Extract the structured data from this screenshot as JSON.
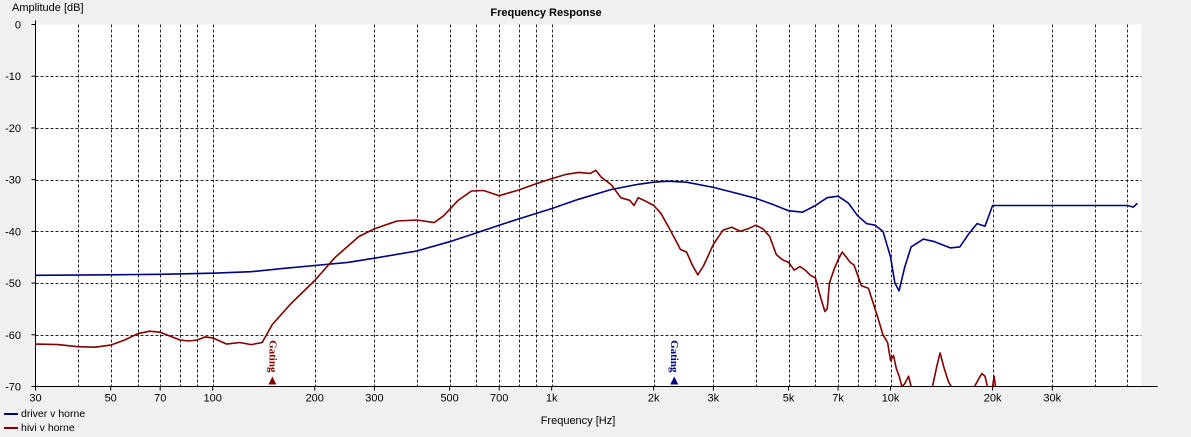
{
  "chart_data": {
    "type": "line",
    "title": "Frequency Response",
    "xlabel": "Frequency [Hz]",
    "ylabel": "Amplitude [dB]",
    "xscale": "log",
    "xlim": [
      30,
      55000
    ],
    "ylim": [
      -70,
      0
    ],
    "grid": true,
    "legend_position": "bottom-left",
    "x_ticks": [
      {
        "v": 30,
        "label": "30"
      },
      {
        "v": 50,
        "label": "50"
      },
      {
        "v": 70,
        "label": "70"
      },
      {
        "v": 100,
        "label": "100"
      },
      {
        "v": 200,
        "label": "200"
      },
      {
        "v": 300,
        "label": "300"
      },
      {
        "v": 500,
        "label": "500"
      },
      {
        "v": 700,
        "label": "700"
      },
      {
        "v": 1000,
        "label": "1k"
      },
      {
        "v": 2000,
        "label": "2k"
      },
      {
        "v": 3000,
        "label": "3k"
      },
      {
        "v": 5000,
        "label": "5k"
      },
      {
        "v": 7000,
        "label": "7k"
      },
      {
        "v": 10000,
        "label": "10k"
      },
      {
        "v": 20000,
        "label": "20k"
      },
      {
        "v": 30000,
        "label": "30k"
      }
    ],
    "y_ticks": [
      {
        "v": 0,
        "label": "0"
      },
      {
        "v": -10,
        "label": "-10"
      },
      {
        "v": -20,
        "label": "-20"
      },
      {
        "v": -30,
        "label": "-30"
      },
      {
        "v": -40,
        "label": "-40"
      },
      {
        "v": -50,
        "label": "-50"
      },
      {
        "v": -60,
        "label": "-60"
      },
      {
        "v": -70,
        "label": "-70"
      }
    ],
    "series": [
      {
        "name": "driver v horne",
        "color": "#00007f",
        "points": [
          [
            30,
            -48.5
          ],
          [
            50,
            -48.4
          ],
          [
            70,
            -48.3
          ],
          [
            100,
            -48.1
          ],
          [
            130,
            -47.8
          ],
          [
            160,
            -47.2
          ],
          [
            200,
            -46.6
          ],
          [
            250,
            -46.0
          ],
          [
            300,
            -45.2
          ],
          [
            400,
            -43.8
          ],
          [
            500,
            -42.0
          ],
          [
            600,
            -40.3
          ],
          [
            700,
            -38.8
          ],
          [
            800,
            -37.6
          ],
          [
            1000,
            -35.6
          ],
          [
            1200,
            -33.8
          ],
          [
            1500,
            -31.9
          ],
          [
            1800,
            -30.9
          ],
          [
            2000,
            -30.5
          ],
          [
            2200,
            -30.3
          ],
          [
            2500,
            -30.5
          ],
          [
            3000,
            -31.5
          ],
          [
            3500,
            -32.6
          ],
          [
            4000,
            -33.6
          ],
          [
            4500,
            -34.8
          ],
          [
            5000,
            -36.0
          ],
          [
            5500,
            -36.3
          ],
          [
            6000,
            -35.0
          ],
          [
            6500,
            -33.5
          ],
          [
            7000,
            -33.2
          ],
          [
            7500,
            -34.5
          ],
          [
            8000,
            -37.0
          ],
          [
            8500,
            -38.5
          ],
          [
            9000,
            -38.8
          ],
          [
            9500,
            -40.0
          ],
          [
            10000,
            -45.0
          ],
          [
            10300,
            -50.0
          ],
          [
            10600,
            -51.5
          ],
          [
            11000,
            -47.0
          ],
          [
            11500,
            -43.0
          ],
          [
            12500,
            -41.5
          ],
          [
            13500,
            -42.0
          ],
          [
            15000,
            -43.2
          ],
          [
            16000,
            -43.0
          ],
          [
            17000,
            -40.5
          ],
          [
            18000,
            -38.5
          ],
          [
            19000,
            -39.0
          ],
          [
            20000,
            -35.0
          ],
          [
            30000,
            -35.0
          ],
          [
            50000,
            -35.0
          ],
          [
            52000,
            -35.3
          ],
          [
            53500,
            -34.6
          ]
        ]
      },
      {
        "name": "hivi v horne",
        "color": "#800000",
        "points": [
          [
            30,
            -61.8
          ],
          [
            35,
            -61.9
          ],
          [
            40,
            -62.3
          ],
          [
            45,
            -62.4
          ],
          [
            50,
            -62.0
          ],
          [
            55,
            -61.0
          ],
          [
            60,
            -59.8
          ],
          [
            65,
            -59.3
          ],
          [
            70,
            -59.5
          ],
          [
            75,
            -60.3
          ],
          [
            80,
            -61.0
          ],
          [
            85,
            -61.2
          ],
          [
            90,
            -61.0
          ],
          [
            95,
            -60.4
          ],
          [
            100,
            -60.6
          ],
          [
            110,
            -61.8
          ],
          [
            120,
            -61.5
          ],
          [
            130,
            -61.9
          ],
          [
            140,
            -61.5
          ],
          [
            150,
            -58.0
          ],
          [
            170,
            -54.0
          ],
          [
            200,
            -49.5
          ],
          [
            230,
            -45.0
          ],
          [
            270,
            -41.0
          ],
          [
            300,
            -39.5
          ],
          [
            350,
            -38.0
          ],
          [
            400,
            -37.8
          ],
          [
            450,
            -38.3
          ],
          [
            480,
            -37.0
          ],
          [
            530,
            -34.0
          ],
          [
            580,
            -32.2
          ],
          [
            630,
            -32.1
          ],
          [
            700,
            -33.1
          ],
          [
            800,
            -32.0
          ],
          [
            900,
            -30.8
          ],
          [
            1000,
            -29.8
          ],
          [
            1100,
            -29.0
          ],
          [
            1200,
            -28.6
          ],
          [
            1300,
            -28.8
          ],
          [
            1350,
            -28.2
          ],
          [
            1400,
            -29.5
          ],
          [
            1500,
            -31.0
          ],
          [
            1600,
            -33.5
          ],
          [
            1700,
            -34.0
          ],
          [
            1750,
            -35.0
          ],
          [
            1800,
            -33.5
          ],
          [
            1900,
            -34.2
          ],
          [
            2000,
            -35.0
          ],
          [
            2100,
            -36.5
          ],
          [
            2250,
            -40.0
          ],
          [
            2400,
            -43.5
          ],
          [
            2500,
            -44.0
          ],
          [
            2600,
            -46.5
          ],
          [
            2700,
            -48.4
          ],
          [
            2800,
            -46.8
          ],
          [
            3000,
            -42.5
          ],
          [
            3200,
            -39.8
          ],
          [
            3400,
            -39.2
          ],
          [
            3600,
            -40.0
          ],
          [
            3800,
            -39.5
          ],
          [
            4000,
            -38.8
          ],
          [
            4200,
            -39.5
          ],
          [
            4400,
            -41.0
          ],
          [
            4600,
            -44.5
          ],
          [
            4800,
            -45.5
          ],
          [
            5000,
            -46.0
          ],
          [
            5200,
            -47.5
          ],
          [
            5400,
            -46.8
          ],
          [
            5600,
            -47.5
          ],
          [
            5800,
            -48.5
          ],
          [
            6000,
            -49.0
          ],
          [
            6200,
            -52.5
          ],
          [
            6400,
            -55.5
          ],
          [
            6500,
            -55.0
          ],
          [
            6600,
            -50.0
          ],
          [
            6800,
            -47.5
          ],
          [
            7000,
            -45.5
          ],
          [
            7200,
            -44.0
          ],
          [
            7400,
            -45.0
          ],
          [
            7600,
            -46.0
          ],
          [
            7800,
            -46.5
          ],
          [
            8000,
            -48.5
          ],
          [
            8200,
            -50.5
          ],
          [
            8600,
            -51.0
          ],
          [
            8900,
            -54.0
          ],
          [
            9200,
            -57.0
          ],
          [
            9500,
            -60.0
          ],
          [
            9800,
            -61.5
          ],
          [
            10000,
            -65.0
          ],
          [
            10200,
            -64.0
          ],
          [
            10400,
            -66.5
          ],
          [
            10600,
            -68.0
          ],
          [
            10800,
            -70.0
          ],
          [
            11000,
            -69.5
          ],
          [
            11300,
            -68.0
          ],
          [
            11500,
            -70.0
          ]
        ],
        "points_extra": [
          [
            [
              13300,
              -70.0
            ],
            [
              13700,
              -66.0
            ],
            [
              14000,
              -63.5
            ],
            [
              14400,
              -66.5
            ],
            [
              14800,
              -69.0
            ],
            [
              15100,
              -70.0
            ]
          ],
          [
            [
              17700,
              -70.0
            ],
            [
              18200,
              -68.5
            ],
            [
              18600,
              -67.5
            ],
            [
              19000,
              -68.0
            ],
            [
              19300,
              -70.0
            ]
          ],
          [
            [
              20000,
              -70.0
            ],
            [
              20200,
              -68.0
            ],
            [
              20400,
              -70.0
            ]
          ]
        ]
      }
    ],
    "markers": [
      {
        "x": 150,
        "label": "Gating",
        "color": "#800000"
      },
      {
        "x": 2300,
        "label": "Gating",
        "color": "#00007f"
      }
    ]
  }
}
